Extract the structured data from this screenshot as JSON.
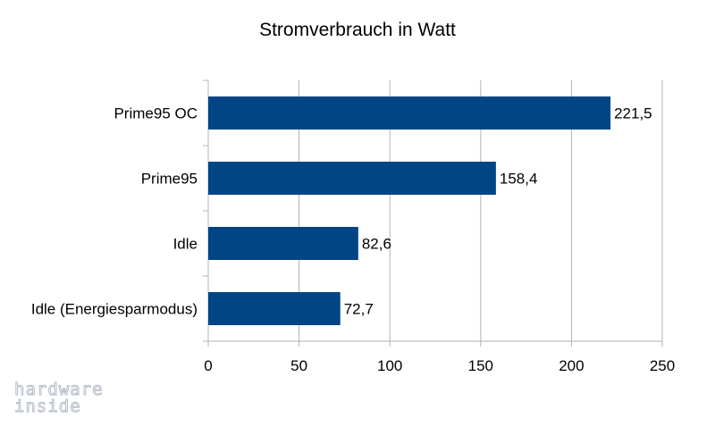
{
  "chart_data": {
    "type": "bar",
    "orientation": "horizontal",
    "title": "Stromverbrauch in Watt",
    "xlabel": "",
    "ylabel": "",
    "categories": [
      "Prime95 OC",
      "Prime95",
      "Idle",
      "Idle (Energiesparmodus)"
    ],
    "values": [
      221.5,
      158.4,
      82.6,
      72.7
    ],
    "value_labels": [
      "221,5",
      "158,4",
      "82,6",
      "72,7"
    ],
    "xlim": [
      0,
      250
    ],
    "xticks": [
      0,
      50,
      100,
      150,
      200,
      250
    ],
    "grid": "vertical",
    "legend": "none",
    "bar_color": "#004586"
  },
  "watermark": {
    "line1": "hardware",
    "line2": "inside"
  },
  "colors": {
    "bar": "#004586",
    "grid": "#b3b3b3",
    "watermark": "#b5bcc6"
  }
}
